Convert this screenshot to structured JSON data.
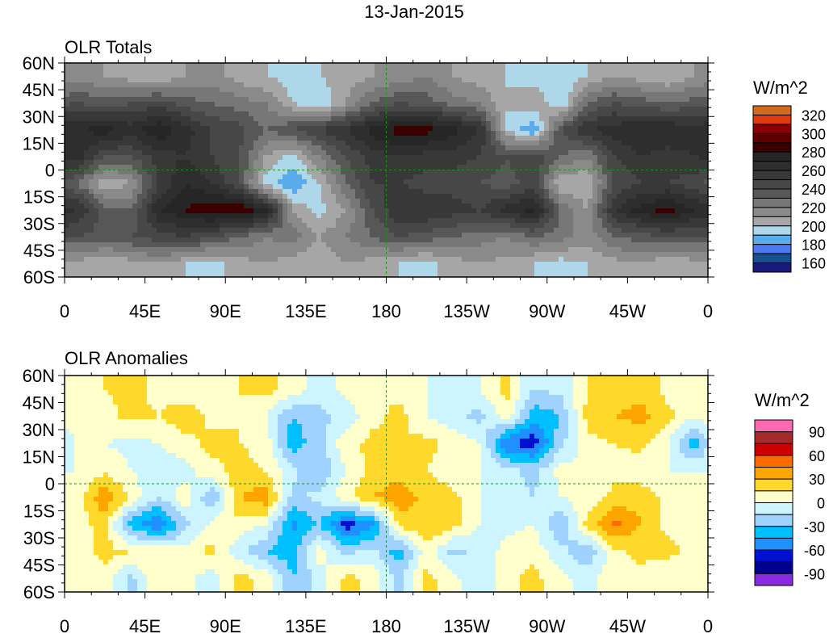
{
  "title": "13-Jan-2015",
  "chart_data": [
    {
      "type": "heatmap",
      "title": "OLR Totals",
      "units": "W/m^2",
      "ytick_labels": [
        "60N",
        "45N",
        "30N",
        "15N",
        "0",
        "15S",
        "30S",
        "45S",
        "60S"
      ],
      "xtick_labels": [
        "0",
        "45E",
        "90E",
        "135E",
        "180",
        "135W",
        "90W",
        "45W",
        "0"
      ],
      "xlim": [
        0,
        360
      ],
      "ylim": [
        -60,
        60
      ],
      "grid_lats": [
        52.5,
        37.5,
        22.5,
        7.5,
        -7.5,
        -22.5,
        -37.5,
        -52.5
      ],
      "grid_lon_step": 15,
      "values": [
        [
          215,
          210,
          205,
          200,
          210,
          215,
          205,
          200,
          195,
          200,
          205,
          210,
          215,
          220,
          210,
          205,
          200,
          195,
          190,
          200,
          210,
          205,
          200,
          210
        ],
        [
          240,
          235,
          240,
          245,
          235,
          230,
          225,
          220,
          200,
          190,
          210,
          230,
          240,
          235,
          225,
          220,
          200,
          210,
          190,
          230,
          240,
          235,
          230,
          235
        ],
        [
          270,
          275,
          265,
          280,
          265,
          250,
          245,
          230,
          240,
          250,
          260,
          275,
          285,
          285,
          275,
          260,
          200,
          180,
          240,
          260,
          265,
          270,
          270,
          265
        ],
        [
          265,
          240,
          240,
          255,
          260,
          250,
          240,
          210,
          195,
          220,
          240,
          255,
          260,
          255,
          255,
          250,
          240,
          250,
          230,
          220,
          250,
          260,
          255,
          260
        ],
        [
          230,
          200,
          210,
          250,
          270,
          260,
          240,
          195,
          180,
          200,
          230,
          250,
          250,
          245,
          245,
          240,
          235,
          245,
          200,
          200,
          240,
          250,
          250,
          245
        ],
        [
          260,
          235,
          230,
          270,
          280,
          290,
          290,
          275,
          210,
          195,
          210,
          240,
          260,
          260,
          255,
          250,
          265,
          275,
          230,
          210,
          260,
          275,
          285,
          270
        ],
        [
          240,
          235,
          240,
          245,
          250,
          240,
          230,
          220,
          225,
          210,
          220,
          230,
          240,
          235,
          230,
          225,
          220,
          230,
          225,
          215,
          230,
          235,
          240,
          240
        ],
        [
          205,
          200,
          205,
          210,
          200,
          195,
          205,
          210,
          205,
          200,
          210,
          205,
          200,
          195,
          205,
          210,
          205,
          200,
          195,
          200,
          205,
          210,
          200,
          205
        ]
      ],
      "levels": [
        160,
        170,
        180,
        190,
        200,
        210,
        220,
        230,
        240,
        250,
        260,
        270,
        280,
        290,
        300,
        310,
        320
      ],
      "colors": [
        "#1a1a7a",
        "#15508f",
        "#4a78f0",
        "#5aabeb",
        "#aed8ea",
        "#a6a6a6",
        "#8a8a8a",
        "#777777",
        "#575757",
        "#474747",
        "#383838",
        "#2e2e2e",
        "#262626",
        "#3a0000",
        "#5e0000",
        "#8b0000",
        "#e03a10",
        "#d46a1e"
      ],
      "colorbar_labels": [
        "320",
        "300",
        "280",
        "260",
        "240",
        "220",
        "200",
        "180",
        "160"
      ]
    },
    {
      "type": "heatmap",
      "title": "OLR Anomalies",
      "units": "W/m^2",
      "ytick_labels": [
        "60N",
        "45N",
        "30N",
        "15N",
        "0",
        "15S",
        "30S",
        "45S",
        "60S"
      ],
      "xtick_labels": [
        "0",
        "45E",
        "90E",
        "135E",
        "180",
        "135W",
        "90W",
        "45W",
        "0"
      ],
      "xlim": [
        0,
        360
      ],
      "ylim": [
        -60,
        60
      ],
      "grid_lats": [
        52.5,
        37.5,
        22.5,
        7.5,
        -7.5,
        -22.5,
        -37.5,
        -52.5
      ],
      "grid_lon_step": 15,
      "values": [
        [
          10,
          15,
          20,
          10,
          5,
          10,
          15,
          20,
          10,
          -10,
          5,
          15,
          10,
          0,
          -10,
          0,
          20,
          -15,
          -10,
          15,
          20,
          25,
          10,
          5
        ],
        [
          15,
          10,
          20,
          15,
          25,
          10,
          15,
          0,
          -30,
          -20,
          -10,
          10,
          20,
          0,
          -10,
          -20,
          10,
          -40,
          -30,
          20,
          30,
          35,
          20,
          0
        ],
        [
          5,
          0,
          -5,
          0,
          10,
          20,
          15,
          10,
          -40,
          -20,
          10,
          20,
          15,
          20,
          10,
          0,
          -60,
          -70,
          -20,
          10,
          15,
          20,
          0,
          -40
        ],
        [
          0,
          10,
          0,
          -10,
          -5,
          10,
          20,
          15,
          -10,
          -30,
          0,
          20,
          25,
          15,
          5,
          0,
          -10,
          -20,
          5,
          0,
          10,
          5,
          0,
          0
        ],
        [
          5,
          45,
          10,
          -15,
          10,
          -30,
          30,
          40,
          -20,
          -10,
          10,
          30,
          40,
          25,
          20,
          0,
          -10,
          -15,
          0,
          5,
          20,
          25,
          10,
          5
        ],
        [
          10,
          20,
          -40,
          -60,
          -20,
          5,
          10,
          0,
          -50,
          -30,
          -70,
          -50,
          20,
          30,
          20,
          0,
          -5,
          0,
          -30,
          20,
          50,
          30,
          10,
          5
        ],
        [
          10,
          20,
          15,
          10,
          5,
          20,
          -10,
          -30,
          -40,
          10,
          -20,
          -10,
          -40,
          10,
          -20,
          -10,
          5,
          10,
          -10,
          -30,
          10,
          20,
          20,
          10
        ],
        [
          5,
          10,
          -20,
          15,
          5,
          -10,
          20,
          10,
          -30,
          -10,
          20,
          10,
          -20,
          20,
          5,
          -15,
          10,
          20,
          5,
          -5,
          10,
          10,
          0,
          5
        ]
      ],
      "levels": [
        -90,
        -75,
        -60,
        -45,
        -30,
        -15,
        0,
        15,
        30,
        45,
        60,
        75,
        90
      ],
      "colors": [
        "#8a2be2",
        "#000090",
        "#0010d0",
        "#1e90ff",
        "#00bfff",
        "#a0d2ff",
        "#ccf5ff",
        "#ffffcc",
        "#ffd82c",
        "#ffa500",
        "#ff6a00",
        "#cc0000",
        "#a52a2a",
        "#ff69b4"
      ],
      "colorbar_labels": [
        "90",
        "60",
        "30",
        "0",
        "-30",
        "-60",
        "-90"
      ]
    }
  ]
}
